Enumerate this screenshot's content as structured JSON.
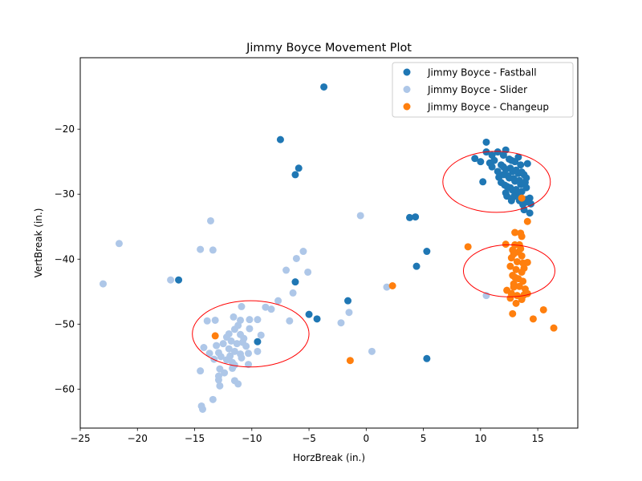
{
  "chart_data": {
    "type": "scatter",
    "title": "Jimmy Boyce Movement Plot",
    "xlabel": "HorzBreak (in.)",
    "ylabel": "VertBreak (in.)",
    "xlim": [
      -25,
      18.5
    ],
    "ylim": [
      -66,
      -9
    ],
    "xticks": [
      -25,
      -20,
      -15,
      -10,
      -5,
      0,
      5,
      10,
      15
    ],
    "yticks": [
      -60,
      -50,
      -40,
      -30,
      -20
    ],
    "grid": false,
    "legend_position": "top-right",
    "series": [
      {
        "name": "Jimmy Boyce - Fastball",
        "color": "#1f77b4",
        "points": [
          [
            -3.7,
            -13.5
          ],
          [
            -7.5,
            -21.6
          ],
          [
            -5.9,
            -26.0
          ],
          [
            -6.2,
            -27.0
          ],
          [
            -16.4,
            -43.2
          ],
          [
            -6.2,
            -43.5
          ],
          [
            -1.6,
            -46.4
          ],
          [
            -5.0,
            -48.5
          ],
          [
            -4.3,
            -49.2
          ],
          [
            -9.5,
            -52.7
          ],
          [
            3.8,
            -33.6
          ],
          [
            4.3,
            -33.5
          ],
          [
            5.3,
            -38.8
          ],
          [
            4.4,
            -41.1
          ],
          [
            5.3,
            -55.3
          ],
          [
            10.5,
            -22.0
          ],
          [
            10.2,
            -28.1
          ],
          [
            9.5,
            -24.5
          ],
          [
            10.0,
            -25.0
          ],
          [
            10.5,
            -23.5
          ],
          [
            11.0,
            -24.0
          ],
          [
            11.5,
            -23.5
          ],
          [
            12.0,
            -24.0
          ],
          [
            12.2,
            -23.2
          ],
          [
            12.5,
            -24.6
          ],
          [
            13.0,
            -25.0
          ],
          [
            13.5,
            -25.5
          ],
          [
            14.1,
            -25.3
          ],
          [
            10.8,
            -25.2
          ],
          [
            11.2,
            -24.8
          ],
          [
            11.8,
            -25.5
          ],
          [
            12.2,
            -26.2
          ],
          [
            12.8,
            -26.5
          ],
          [
            13.3,
            -26.8
          ],
          [
            13.8,
            -27.0
          ],
          [
            14.0,
            -27.5
          ],
          [
            11.5,
            -26.5
          ],
          [
            12.0,
            -27.0
          ],
          [
            12.5,
            -27.5
          ],
          [
            13.0,
            -28.0
          ],
          [
            13.5,
            -28.5
          ],
          [
            14.0,
            -29.0
          ],
          [
            11.8,
            -28.2
          ],
          [
            12.3,
            -28.8
          ],
          [
            12.8,
            -29.4
          ],
          [
            13.2,
            -30.0
          ],
          [
            12.2,
            -29.8
          ],
          [
            12.7,
            -31.0
          ],
          [
            13.5,
            -30.5
          ],
          [
            14.0,
            -30.8
          ],
          [
            14.3,
            -30.6
          ],
          [
            14.4,
            -31.5
          ],
          [
            13.8,
            -32.4
          ],
          [
            14.3,
            -32.9
          ],
          [
            14.1,
            -31.2
          ],
          [
            12.0,
            -25.8
          ],
          [
            12.6,
            -26.0
          ],
          [
            13.1,
            -26.3
          ],
          [
            13.6,
            -26.6
          ],
          [
            12.4,
            -27.2
          ],
          [
            12.9,
            -27.6
          ],
          [
            13.4,
            -27.9
          ],
          [
            13.9,
            -28.2
          ],
          [
            12.1,
            -28.6
          ],
          [
            12.6,
            -29.0
          ],
          [
            13.1,
            -29.3
          ],
          [
            13.6,
            -29.6
          ],
          [
            12.9,
            -30.4
          ],
          [
            13.4,
            -31.0
          ],
          [
            11.6,
            -27.4
          ],
          [
            12.3,
            -30.3
          ],
          [
            13.7,
            -31.6
          ],
          [
            11.0,
            -25.8
          ],
          [
            13.3,
            -24.3
          ],
          [
            12.7,
            -24.8
          ]
        ]
      },
      {
        "name": "Jimmy Boyce - Slider",
        "color": "#aec7e8",
        "points": [
          [
            -23.0,
            -43.8
          ],
          [
            -21.6,
            -37.6
          ],
          [
            -17.1,
            -43.2
          ],
          [
            -13.6,
            -34.1
          ],
          [
            -14.5,
            -38.5
          ],
          [
            -13.4,
            -38.6
          ],
          [
            -7.7,
            -46.4
          ],
          [
            -7.0,
            -41.7
          ],
          [
            -6.1,
            -39.9
          ],
          [
            -5.5,
            -38.8
          ],
          [
            -5.1,
            -42.0
          ],
          [
            -6.4,
            -45.2
          ],
          [
            -6.7,
            -49.5
          ],
          [
            -0.5,
            -33.3
          ],
          [
            -1.5,
            -48.2
          ],
          [
            -2.2,
            -49.8
          ],
          [
            0.5,
            -54.2
          ],
          [
            1.8,
            -44.3
          ],
          [
            10.5,
            -45.6
          ],
          [
            -14.3,
            -63.1
          ],
          [
            -14.4,
            -62.6
          ],
          [
            -13.4,
            -61.6
          ],
          [
            -14.5,
            -57.2
          ],
          [
            -12.8,
            -59.5
          ],
          [
            -12.9,
            -58.6
          ],
          [
            -11.2,
            -59.2
          ],
          [
            -11.5,
            -58.7
          ],
          [
            -8.3,
            -47.7
          ],
          [
            -8.8,
            -47.4
          ],
          [
            -10.9,
            -47.3
          ],
          [
            -11.6,
            -48.9
          ],
          [
            -10.2,
            -49.3
          ],
          [
            -9.5,
            -49.3
          ],
          [
            -10.2,
            -50.7
          ],
          [
            -9.2,
            -51.7
          ],
          [
            -9.5,
            -54.2
          ],
          [
            -10.3,
            -54.5
          ],
          [
            -10.3,
            -56.2
          ],
          [
            -13.9,
            -49.5
          ],
          [
            -13.2,
            -49.4
          ],
          [
            -14.2,
            -53.6
          ],
          [
            -13.7,
            -54.5
          ],
          [
            -13.3,
            -55.4
          ],
          [
            -12.8,
            -56.9
          ],
          [
            -12.9,
            -58.0
          ],
          [
            -12.4,
            -57.5
          ],
          [
            -11.7,
            -56.8
          ],
          [
            -11.5,
            -56.3
          ],
          [
            -12.2,
            -52.0
          ],
          [
            -12.0,
            -51.5
          ],
          [
            -11.5,
            -50.8
          ],
          [
            -11.2,
            -50.2
          ],
          [
            -11.0,
            -49.4
          ],
          [
            -12.5,
            -53.0
          ],
          [
            -12.0,
            -53.8
          ],
          [
            -11.5,
            -54.2
          ],
          [
            -11.0,
            -54.6
          ],
          [
            -12.7,
            -55.0
          ],
          [
            -12.2,
            -55.5
          ],
          [
            -11.7,
            -55.9
          ],
          [
            -11.8,
            -52.6
          ],
          [
            -11.3,
            -53.0
          ],
          [
            -10.8,
            -52.8
          ],
          [
            -10.5,
            -53.4
          ],
          [
            -11.0,
            -51.6
          ],
          [
            -10.7,
            -52.2
          ],
          [
            -12.9,
            -54.4
          ],
          [
            -13.1,
            -53.3
          ],
          [
            -11.9,
            -54.9
          ],
          [
            -10.9,
            -55.2
          ]
        ]
      },
      {
        "name": "Jimmy Boyce - Changeup",
        "color": "#ff7f0e",
        "points": [
          [
            13.6,
            -30.6
          ],
          [
            14.1,
            -34.2
          ],
          [
            13.0,
            -35.9
          ],
          [
            13.5,
            -36.0
          ],
          [
            13.6,
            -36.5
          ],
          [
            8.9,
            -38.1
          ],
          [
            12.2,
            -37.7
          ],
          [
            13.0,
            -37.8
          ],
          [
            13.4,
            -37.8
          ],
          [
            12.8,
            -38.6
          ],
          [
            13.3,
            -38.9
          ],
          [
            13.6,
            -39.5
          ],
          [
            12.7,
            -39.8
          ],
          [
            13.2,
            -40.4
          ],
          [
            13.7,
            -40.6
          ],
          [
            14.1,
            -40.5
          ],
          [
            12.6,
            -41.1
          ],
          [
            13.1,
            -41.6
          ],
          [
            13.6,
            -42.0
          ],
          [
            12.8,
            -42.5
          ],
          [
            13.3,
            -43.0
          ],
          [
            13.7,
            -43.4
          ],
          [
            12.9,
            -43.8
          ],
          [
            13.4,
            -44.2
          ],
          [
            12.3,
            -44.8
          ],
          [
            12.7,
            -45.3
          ],
          [
            13.2,
            -45.6
          ],
          [
            13.8,
            -45.5
          ],
          [
            14.1,
            -45.3
          ],
          [
            13.1,
            -46.8
          ],
          [
            12.6,
            -46.0
          ],
          [
            12.8,
            -48.4
          ],
          [
            14.6,
            -49.2
          ],
          [
            15.5,
            -47.8
          ],
          [
            16.4,
            -50.6
          ],
          [
            2.3,
            -44.1
          ],
          [
            -1.4,
            -55.6
          ],
          [
            -13.2,
            -51.8
          ],
          [
            13.9,
            -44.6
          ],
          [
            12.9,
            -44.3
          ],
          [
            13.5,
            -38.4
          ],
          [
            12.9,
            -39.2
          ],
          [
            13.8,
            -41.4
          ],
          [
            13.0,
            -42.8
          ],
          [
            13.6,
            -46.2
          ]
        ]
      }
    ],
    "ellipses": [
      {
        "center": [
          11.4,
          -28.1
        ],
        "width": 9.4,
        "height": 9.4,
        "color": "#ff0000"
      },
      {
        "center": [
          12.5,
          -41.8
        ],
        "width": 8.0,
        "height": 8.0,
        "color": "#ff0000"
      },
      {
        "center": [
          -10.1,
          -51.5
        ],
        "width": 10.2,
        "height": 10.2,
        "color": "#ff0000"
      }
    ]
  }
}
